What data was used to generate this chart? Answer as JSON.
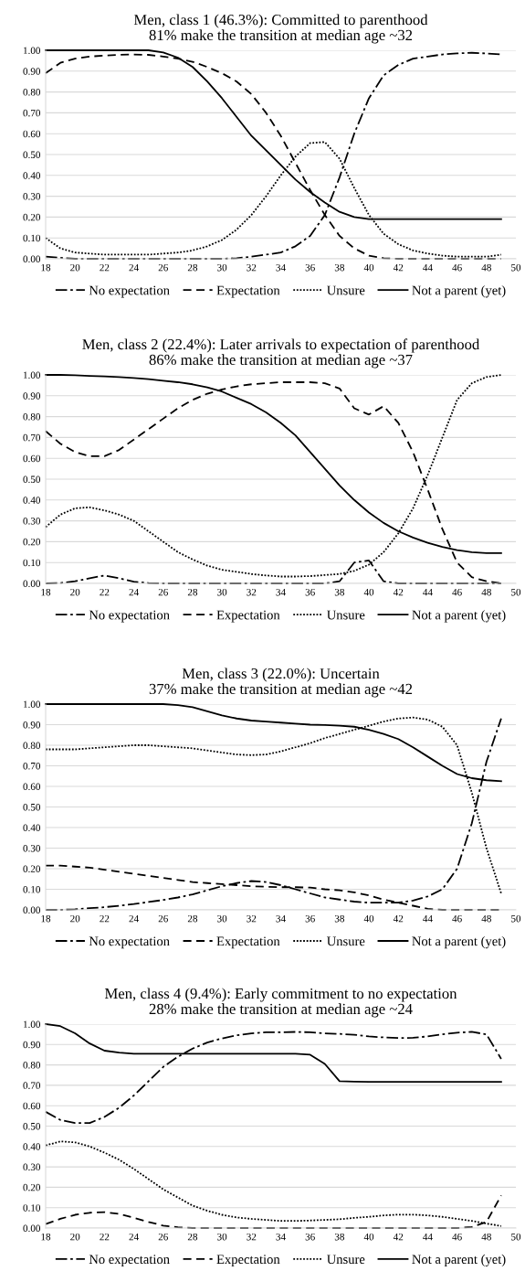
{
  "chart_data": [
    {
      "type": "line",
      "title": "Men, class 1 (46.3%): Committed to parenthood",
      "subtitle": "81% make the transition at median age ~32",
      "x": [
        18,
        19,
        20,
        21,
        22,
        23,
        24,
        25,
        26,
        27,
        28,
        29,
        30,
        31,
        32,
        33,
        34,
        35,
        36,
        37,
        38,
        39,
        40,
        41,
        42,
        43,
        44,
        45,
        46,
        47,
        48,
        49
      ],
      "xlim": [
        18,
        50
      ],
      "xticks": [
        18,
        20,
        22,
        24,
        26,
        28,
        30,
        32,
        34,
        36,
        38,
        40,
        42,
        44,
        46,
        48,
        50
      ],
      "ylim": [
        0,
        1
      ],
      "yticks": [
        {
          "value": 0,
          "label": "0.00"
        },
        {
          "value": 0.1,
          "label": "0.10"
        },
        {
          "value": 0.2,
          "label": "0.20"
        },
        {
          "value": 0.3,
          "label": "0.30"
        },
        {
          "value": 0.4,
          "label": "0.40"
        },
        {
          "value": 0.5,
          "label": "0.50"
        },
        {
          "value": 0.6,
          "label": "0.60"
        },
        {
          "value": 0.7,
          "label": "0.70"
        },
        {
          "value": 0.8,
          "label": "0.80"
        },
        {
          "value": 0.9,
          "label": "0.90"
        },
        {
          "value": 1,
          "label": "1.00"
        }
      ],
      "grid": "y",
      "legend": "bottom",
      "series": [
        {
          "name": "No expectation",
          "color": "#000000",
          "line_style": "dashdot",
          "values": [
            0.01,
            0.005,
            0,
            0,
            0,
            0,
            0,
            0,
            0,
            0,
            0,
            0,
            0,
            0.003,
            0.01,
            0.02,
            0.03,
            0.06,
            0.11,
            0.21,
            0.39,
            0.6,
            0.77,
            0.88,
            0.93,
            0.96,
            0.97,
            0.98,
            0.985,
            0.988,
            0.985,
            0.98
          ]
        },
        {
          "name": "Expectation",
          "color": "#000000",
          "line_style": "dashed",
          "values": [
            0.89,
            0.94,
            0.96,
            0.97,
            0.975,
            0.978,
            0.98,
            0.978,
            0.97,
            0.96,
            0.945,
            0.92,
            0.89,
            0.85,
            0.79,
            0.7,
            0.59,
            0.46,
            0.33,
            0.21,
            0.11,
            0.05,
            0.015,
            0.003,
            0,
            0,
            0,
            0,
            0,
            0,
            0,
            0
          ]
        },
        {
          "name": "Unsure",
          "color": "#000000",
          "line_style": "dotted",
          "values": [
            0.1,
            0.05,
            0.03,
            0.025,
            0.02,
            0.02,
            0.02,
            0.02,
            0.025,
            0.03,
            0.04,
            0.06,
            0.09,
            0.14,
            0.21,
            0.3,
            0.4,
            0.49,
            0.555,
            0.56,
            0.48,
            0.34,
            0.21,
            0.12,
            0.07,
            0.04,
            0.025,
            0.015,
            0.01,
            0.01,
            0.01,
            0.02
          ]
        },
        {
          "name": "Not a parent (yet)",
          "color": "#000000",
          "line_style": "solid",
          "values": [
            1,
            1,
            1,
            1,
            1,
            1,
            1,
            1,
            0.99,
            0.965,
            0.92,
            0.85,
            0.77,
            0.68,
            0.59,
            0.52,
            0.45,
            0.38,
            0.32,
            0.27,
            0.225,
            0.2,
            0.19,
            0.19,
            0.19,
            0.19,
            0.19,
            0.19,
            0.19,
            0.19,
            0.19,
            0.19
          ]
        }
      ]
    },
    {
      "type": "line",
      "title": "Men, class 2 (22.4%): Later arrivals to expectation of parenthood",
      "subtitle": "86% make the transition at median age ~37",
      "x": [
        18,
        19,
        20,
        21,
        22,
        23,
        24,
        25,
        26,
        27,
        28,
        29,
        30,
        31,
        32,
        33,
        34,
        35,
        36,
        37,
        38,
        39,
        40,
        41,
        42,
        43,
        44,
        45,
        46,
        47,
        48,
        49
      ],
      "xlim": [
        18,
        50
      ],
      "xticks": [
        18,
        20,
        22,
        24,
        26,
        28,
        30,
        32,
        34,
        36,
        38,
        40,
        42,
        44,
        46,
        48,
        50
      ],
      "ylim": [
        0,
        1
      ],
      "yticks": [
        {
          "value": 0,
          "label": "0.00"
        },
        {
          "value": 0.1,
          "label": "0.10"
        },
        {
          "value": 0.2,
          "label": "0.20"
        },
        {
          "value": 0.3,
          "label": "0.30"
        },
        {
          "value": 0.4,
          "label": "0.40"
        },
        {
          "value": 0.5,
          "label": "0.50"
        },
        {
          "value": 0.6,
          "label": "0.60"
        },
        {
          "value": 0.7,
          "label": "0.70"
        },
        {
          "value": 0.8,
          "label": "0.80"
        },
        {
          "value": 0.9,
          "label": "0.90"
        },
        {
          "value": 1,
          "label": "1.00"
        }
      ],
      "grid": "y",
      "legend": "bottom",
      "series": [
        {
          "name": "No expectation",
          "color": "#000000",
          "line_style": "dashdot",
          "values": [
            0,
            0.002,
            0.01,
            0.025,
            0.038,
            0.025,
            0.008,
            0.002,
            0,
            0,
            0,
            0,
            0,
            0,
            0,
            0,
            0,
            0,
            0,
            0,
            0.01,
            0.1,
            0.11,
            0.01,
            0,
            0,
            0,
            0,
            0,
            0,
            0,
            0
          ]
        },
        {
          "name": "Expectation",
          "color": "#000000",
          "line_style": "dashed",
          "values": [
            0.73,
            0.67,
            0.63,
            0.61,
            0.61,
            0.64,
            0.69,
            0.74,
            0.79,
            0.84,
            0.88,
            0.91,
            0.93,
            0.945,
            0.955,
            0.96,
            0.965,
            0.965,
            0.965,
            0.96,
            0.935,
            0.84,
            0.81,
            0.85,
            0.77,
            0.63,
            0.45,
            0.26,
            0.1,
            0.03,
            0.01,
            0
          ]
        },
        {
          "name": "Unsure",
          "color": "#000000",
          "line_style": "dotted",
          "values": [
            0.27,
            0.33,
            0.36,
            0.365,
            0.35,
            0.33,
            0.3,
            0.25,
            0.2,
            0.15,
            0.115,
            0.085,
            0.065,
            0.055,
            0.045,
            0.038,
            0.033,
            0.033,
            0.035,
            0.04,
            0.045,
            0.06,
            0.09,
            0.15,
            0.24,
            0.36,
            0.52,
            0.7,
            0.88,
            0.96,
            0.99,
            1
          ]
        },
        {
          "name": "Not a parent (yet)",
          "color": "#000000",
          "line_style": "solid",
          "values": [
            1,
            1,
            0.998,
            0.995,
            0.993,
            0.99,
            0.985,
            0.98,
            0.972,
            0.965,
            0.955,
            0.94,
            0.92,
            0.89,
            0.86,
            0.82,
            0.77,
            0.71,
            0.63,
            0.55,
            0.47,
            0.4,
            0.34,
            0.29,
            0.25,
            0.22,
            0.195,
            0.175,
            0.16,
            0.15,
            0.145,
            0.145
          ]
        }
      ]
    },
    {
      "type": "line",
      "title": "Men, class 3 (22.0%): Uncertain",
      "subtitle": "37% make the transition at median age ~42",
      "x": [
        18,
        19,
        20,
        21,
        22,
        23,
        24,
        25,
        26,
        27,
        28,
        29,
        30,
        31,
        32,
        33,
        34,
        35,
        36,
        37,
        38,
        39,
        40,
        41,
        42,
        43,
        44,
        45,
        46,
        47,
        48,
        49
      ],
      "xlim": [
        18,
        50
      ],
      "xticks": [
        18,
        20,
        22,
        24,
        26,
        28,
        30,
        32,
        34,
        36,
        38,
        40,
        42,
        44,
        46,
        48,
        50
      ],
      "ylim": [
        0,
        1
      ],
      "yticks": [
        {
          "value": 0,
          "label": "0.00"
        },
        {
          "value": 0.1,
          "label": "0.10"
        },
        {
          "value": 0.2,
          "label": "0.20"
        },
        {
          "value": 0.3,
          "label": "0.30"
        },
        {
          "value": 0.4,
          "label": "0.40"
        },
        {
          "value": 0.5,
          "label": "0.50"
        },
        {
          "value": 0.6,
          "label": "0.60"
        },
        {
          "value": 0.7,
          "label": "0.70"
        },
        {
          "value": 0.8,
          "label": "0.80"
        },
        {
          "value": 0.9,
          "label": "0.90"
        },
        {
          "value": 1,
          "label": "1.00"
        }
      ],
      "grid": "y",
      "legend": "bottom",
      "series": [
        {
          "name": "No expectation",
          "color": "#000000",
          "line_style": "dashdot",
          "values": [
            0,
            0,
            0.003,
            0.008,
            0.013,
            0.02,
            0.028,
            0.038,
            0.048,
            0.06,
            0.075,
            0.095,
            0.115,
            0.13,
            0.14,
            0.135,
            0.12,
            0.1,
            0.08,
            0.06,
            0.05,
            0.04,
            0.035,
            0.035,
            0.035,
            0.045,
            0.065,
            0.1,
            0.2,
            0.42,
            0.72,
            0.93
          ]
        },
        {
          "name": "Expectation",
          "color": "#000000",
          "line_style": "dashed",
          "values": [
            0.215,
            0.215,
            0.21,
            0.205,
            0.195,
            0.185,
            0.175,
            0.165,
            0.155,
            0.145,
            0.135,
            0.13,
            0.125,
            0.12,
            0.115,
            0.112,
            0.11,
            0.11,
            0.108,
            0.1,
            0.095,
            0.085,
            0.07,
            0.05,
            0.035,
            0.02,
            0.005,
            0,
            0,
            0,
            0,
            0
          ]
        },
        {
          "name": "Unsure",
          "color": "#000000",
          "line_style": "dotted",
          "values": [
            0.78,
            0.78,
            0.78,
            0.785,
            0.79,
            0.795,
            0.8,
            0.8,
            0.795,
            0.79,
            0.785,
            0.775,
            0.765,
            0.755,
            0.752,
            0.755,
            0.77,
            0.79,
            0.81,
            0.835,
            0.855,
            0.875,
            0.895,
            0.915,
            0.93,
            0.935,
            0.925,
            0.89,
            0.8,
            0.57,
            0.3,
            0.08
          ]
        },
        {
          "name": "Not a parent (yet)",
          "color": "#000000",
          "line_style": "solid",
          "values": [
            1,
            1,
            1,
            1,
            1,
            1,
            1,
            1,
            1,
            0.995,
            0.985,
            0.965,
            0.945,
            0.93,
            0.92,
            0.915,
            0.91,
            0.905,
            0.9,
            0.898,
            0.895,
            0.89,
            0.875,
            0.855,
            0.83,
            0.79,
            0.745,
            0.7,
            0.66,
            0.64,
            0.63,
            0.625
          ]
        }
      ]
    },
    {
      "type": "line",
      "title": "Men, class 4 (9.4%): Early commitment to no expectation",
      "subtitle": "28% make the transition at median age ~24",
      "x": [
        18,
        19,
        20,
        21,
        22,
        23,
        24,
        25,
        26,
        27,
        28,
        29,
        30,
        31,
        32,
        33,
        34,
        35,
        36,
        37,
        38,
        39,
        40,
        41,
        42,
        43,
        44,
        45,
        46,
        47,
        48,
        49
      ],
      "xlim": [
        18,
        50
      ],
      "xticks": [
        18,
        20,
        22,
        24,
        26,
        28,
        30,
        32,
        34,
        36,
        38,
        40,
        42,
        44,
        46,
        48,
        50
      ],
      "ylim": [
        0,
        1
      ],
      "yticks": [
        {
          "value": 0,
          "label": "0.00"
        },
        {
          "value": 0.1,
          "label": "0.10"
        },
        {
          "value": 0.2,
          "label": "0.20"
        },
        {
          "value": 0.3,
          "label": "0.30"
        },
        {
          "value": 0.4,
          "label": "0.40"
        },
        {
          "value": 0.5,
          "label": "0.50"
        },
        {
          "value": 0.6,
          "label": "0.60"
        },
        {
          "value": 0.7,
          "label": "0.70"
        },
        {
          "value": 0.8,
          "label": "0.80"
        },
        {
          "value": 0.9,
          "label": "0.90"
        },
        {
          "value": 1,
          "label": "1.00"
        }
      ],
      "grid": "y",
      "legend": "bottom",
      "series": [
        {
          "name": "No expectation",
          "color": "#000000",
          "line_style": "dashdot",
          "values": [
            0.57,
            0.53,
            0.515,
            0.515,
            0.545,
            0.59,
            0.65,
            0.72,
            0.79,
            0.84,
            0.88,
            0.91,
            0.93,
            0.945,
            0.955,
            0.96,
            0.96,
            0.962,
            0.96,
            0.955,
            0.952,
            0.948,
            0.94,
            0.935,
            0.932,
            0.933,
            0.94,
            0.95,
            0.958,
            0.962,
            0.95,
            0.83
          ]
        },
        {
          "name": "Expectation",
          "color": "#000000",
          "line_style": "dashed",
          "values": [
            0.02,
            0.045,
            0.065,
            0.075,
            0.078,
            0.07,
            0.05,
            0.03,
            0.012,
            0.004,
            0,
            0,
            0,
            0,
            0,
            0,
            0,
            0,
            0,
            0,
            0,
            0,
            0,
            0,
            0,
            0,
            0,
            0,
            0,
            0.005,
            0.03,
            0.16
          ]
        },
        {
          "name": "Unsure",
          "color": "#000000",
          "line_style": "dotted",
          "values": [
            0.405,
            0.425,
            0.42,
            0.4,
            0.37,
            0.335,
            0.29,
            0.24,
            0.19,
            0.15,
            0.11,
            0.085,
            0.065,
            0.052,
            0.045,
            0.04,
            0.035,
            0.035,
            0.037,
            0.04,
            0.043,
            0.05,
            0.055,
            0.062,
            0.066,
            0.066,
            0.062,
            0.055,
            0.045,
            0.035,
            0.022,
            0.01
          ]
        },
        {
          "name": "Not a parent (yet)",
          "color": "#000000",
          "line_style": "solid",
          "values": [
            1,
            0.99,
            0.955,
            0.905,
            0.87,
            0.86,
            0.855,
            0.855,
            0.855,
            0.855,
            0.855,
            0.855,
            0.855,
            0.855,
            0.855,
            0.855,
            0.855,
            0.855,
            0.85,
            0.805,
            0.72,
            0.718,
            0.717,
            0.717,
            0.717,
            0.717,
            0.717,
            0.717,
            0.717,
            0.717,
            0.717,
            0.717
          ]
        }
      ]
    }
  ]
}
